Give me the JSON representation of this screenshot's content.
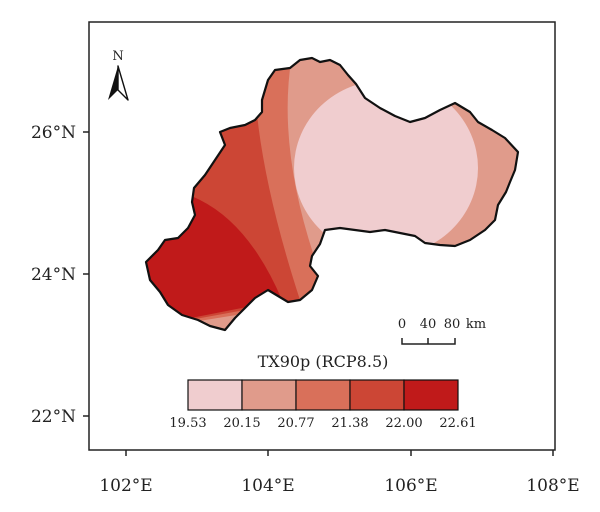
{
  "map": {
    "x_ticks": [
      "102°E",
      "104°E",
      "106°E",
      "108°E"
    ],
    "y_ticks": [
      "26°N",
      "24°N",
      "22°N"
    ],
    "north_label": "N",
    "scale_bar": {
      "labels": [
        "0",
        "40",
        "80"
      ],
      "unit": "km"
    }
  },
  "legend": {
    "title": "TX90p (RCP8.5)",
    "breaks": [
      "19.53",
      "20.15",
      "20.77",
      "21.38",
      "22.00",
      "22.61"
    ],
    "colors": [
      "#f0cdcf",
      "#e09b8b",
      "#d9705a",
      "#cc4635",
      "#c01a1a"
    ]
  },
  "colors": {
    "outline": "#111111",
    "frame": "#222222"
  }
}
